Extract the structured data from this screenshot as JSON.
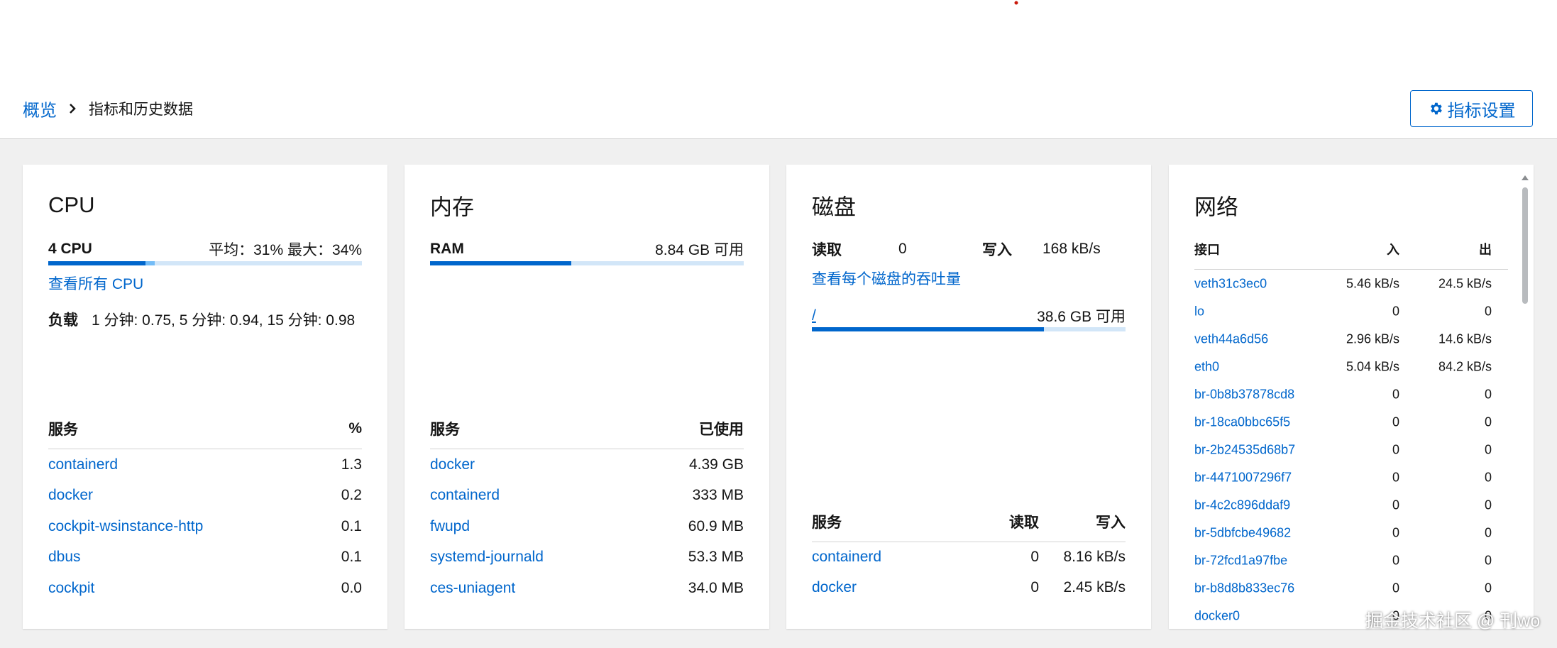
{
  "breadcrumb": {
    "home": "概览",
    "current": "指标和历史数据"
  },
  "settings_button": "指标设置",
  "cpu": {
    "title": "CPU",
    "label": "4 CPU",
    "average_max": "平均：31% 最大：34%",
    "usage": {
      "average": 31,
      "max": 34
    },
    "link": "查看所有 CPU",
    "load_label": "负载",
    "load": "1 分钟: 0.75, 5 分钟: 0.94, 15 分钟: 0.98",
    "services": {
      "columns": [
        "服务",
        "%"
      ],
      "rows": [
        [
          "containerd",
          "1.3"
        ],
        [
          "docker",
          "0.2"
        ],
        [
          "cockpit-wsinstance-http",
          "0.1"
        ],
        [
          "dbus",
          "0.1"
        ],
        [
          "cockpit",
          "0.0"
        ]
      ]
    }
  },
  "memory": {
    "title": "内存",
    "label": "RAM",
    "available": "8.84 GB 可用",
    "used_percent": 45,
    "services": {
      "columns": [
        "服务",
        "已使用"
      ],
      "rows": [
        [
          "docker",
          "4.39 GB"
        ],
        [
          "containerd",
          "333 MB"
        ],
        [
          "fwupd",
          "60.9 MB"
        ],
        [
          "systemd-journald",
          "53.3 MB"
        ],
        [
          "ces-uniagent",
          "34.0 MB"
        ]
      ]
    }
  },
  "disk": {
    "title": "磁盘",
    "read_label": "读取",
    "read": "0",
    "write_label": "写入",
    "write": "168 kB/s",
    "link": "查看每个磁盘的吞吐量",
    "mount": "/",
    "available": "38.6 GB 可用",
    "used_percent": 74,
    "services": {
      "columns": [
        "服务",
        "读取",
        "写入"
      ],
      "rows": [
        [
          "containerd",
          "0",
          "8.16 kB/s"
        ],
        [
          "docker",
          "0",
          "2.45 kB/s"
        ]
      ]
    }
  },
  "network": {
    "title": "网络",
    "interfaces": {
      "columns": [
        "接口",
        "入",
        "出"
      ],
      "rows": [
        [
          "veth31c3ec0",
          "5.46 kB/s",
          "24.5 kB/s"
        ],
        [
          "lo",
          "0",
          "0"
        ],
        [
          "veth44a6d56",
          "2.96 kB/s",
          "14.6 kB/s"
        ],
        [
          "eth0",
          "5.04 kB/s",
          "84.2 kB/s"
        ],
        [
          "br-0b8b37878cd8",
          "0",
          "0"
        ],
        [
          "br-18ca0bbc65f5",
          "0",
          "0"
        ],
        [
          "br-2b24535d68b7",
          "0",
          "0"
        ],
        [
          "br-4471007296f7",
          "0",
          "0"
        ],
        [
          "br-4c2c896ddaf9",
          "0",
          "0"
        ],
        [
          "br-5dbfcbe49682",
          "0",
          "0"
        ],
        [
          "br-72fcd1a97fbe",
          "0",
          "0"
        ],
        [
          "br-b8d8b833ec76",
          "0",
          "0"
        ],
        [
          "docker0",
          "0",
          "0"
        ]
      ]
    }
  },
  "watermark": "掘金技术社区 @ 刊wo"
}
